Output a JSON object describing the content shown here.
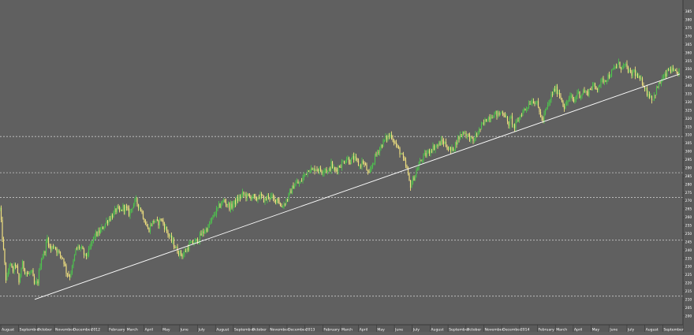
{
  "chart_data": {
    "type": "candlestick",
    "title": "",
    "xlabel": "",
    "ylabel": "",
    "ylim": [
      197,
      391
    ],
    "grid": false,
    "legend": "none",
    "colors": {
      "background": "#606060",
      "up_candle": "#4ec24e",
      "down_candle": "#f0e080",
      "trendline": "#ffffff",
      "level_line": "#c8c8c8",
      "axis_text": "#ffffff",
      "axis_bg": "#5a5a5a"
    },
    "y_ticks": [
      200,
      205,
      210,
      215,
      220,
      225,
      230,
      235,
      240,
      245,
      250,
      255,
      260,
      265,
      270,
      275,
      280,
      285,
      290,
      295,
      300,
      305,
      310,
      315,
      320,
      325,
      330,
      335,
      340,
      345,
      350,
      355,
      360,
      365,
      370,
      375,
      380,
      385
    ],
    "x_labels": [
      "August",
      "September",
      "October",
      "November",
      "December",
      "2012",
      "February",
      "March",
      "April",
      "May",
      "June",
      "July",
      "August",
      "September",
      "October",
      "November",
      "December",
      "2013",
      "February",
      "March",
      "April",
      "May",
      "June",
      "July",
      "August",
      "September",
      "October",
      "November",
      "December",
      "2014",
      "February",
      "March",
      "April",
      "May",
      "June",
      "July",
      "August",
      "September"
    ],
    "horizontal_levels": [
      212,
      246,
      272,
      287,
      309
    ],
    "trendline": {
      "start": {
        "x": 44,
        "y": 210
      },
      "end": {
        "x": 862,
        "y": 347
      }
    },
    "price_path": [
      [
        0,
        265
      ],
      [
        4,
        242
      ],
      [
        8,
        220
      ],
      [
        12,
        232
      ],
      [
        16,
        227
      ],
      [
        20,
        232
      ],
      [
        24,
        220
      ],
      [
        28,
        232
      ],
      [
        32,
        227
      ],
      [
        36,
        225
      ],
      [
        40,
        227
      ],
      [
        44,
        218
      ],
      [
        48,
        221
      ],
      [
        52,
        235
      ],
      [
        56,
        238
      ],
      [
        60,
        247
      ],
      [
        64,
        240
      ],
      [
        68,
        243
      ],
      [
        72,
        240
      ],
      [
        76,
        237
      ],
      [
        80,
        235
      ],
      [
        84,
        227
      ],
      [
        88,
        224
      ],
      [
        92,
        230
      ],
      [
        96,
        240
      ],
      [
        100,
        242
      ],
      [
        104,
        240
      ],
      [
        108,
        236
      ],
      [
        112,
        238
      ],
      [
        116,
        244
      ],
      [
        120,
        249
      ],
      [
        124,
        250
      ],
      [
        128,
        252
      ],
      [
        132,
        255
      ],
      [
        136,
        258
      ],
      [
        140,
        260
      ],
      [
        144,
        262
      ],
      [
        148,
        265
      ],
      [
        152,
        263
      ],
      [
        156,
        266
      ],
      [
        160,
        265
      ],
      [
        164,
        262
      ],
      [
        168,
        267
      ],
      [
        172,
        270
      ],
      [
        176,
        267
      ],
      [
        180,
        263
      ],
      [
        184,
        257
      ],
      [
        188,
        252
      ],
      [
        192,
        256
      ],
      [
        196,
        258
      ],
      [
        200,
        256
      ],
      [
        204,
        259
      ],
      [
        208,
        255
      ],
      [
        212,
        251
      ],
      [
        216,
        247
      ],
      [
        220,
        244
      ],
      [
        224,
        240
      ],
      [
        228,
        238
      ],
      [
        232,
        237
      ],
      [
        236,
        240
      ],
      [
        240,
        243
      ],
      [
        244,
        244
      ],
      [
        248,
        245
      ],
      [
        252,
        247
      ],
      [
        256,
        250
      ],
      [
        260,
        252
      ],
      [
        264,
        254
      ],
      [
        268,
        258
      ],
      [
        272,
        262
      ],
      [
        276,
        265
      ],
      [
        280,
        268
      ],
      [
        284,
        270
      ],
      [
        288,
        268
      ],
      [
        292,
        266
      ],
      [
        296,
        268
      ],
      [
        300,
        270
      ],
      [
        304,
        272
      ],
      [
        308,
        274
      ],
      [
        312,
        273
      ],
      [
        316,
        272
      ],
      [
        320,
        273
      ],
      [
        324,
        270
      ],
      [
        328,
        273
      ],
      [
        332,
        272
      ],
      [
        336,
        270
      ],
      [
        340,
        273
      ],
      [
        344,
        272
      ],
      [
        348,
        270
      ],
      [
        352,
        272
      ],
      [
        356,
        266
      ],
      [
        360,
        268
      ],
      [
        364,
        271
      ],
      [
        368,
        275
      ],
      [
        372,
        279
      ],
      [
        376,
        281
      ],
      [
        380,
        280
      ],
      [
        384,
        284
      ],
      [
        388,
        287
      ],
      [
        392,
        290
      ],
      [
        396,
        288
      ],
      [
        400,
        290
      ],
      [
        404,
        289
      ],
      [
        408,
        288
      ],
      [
        412,
        290
      ],
      [
        416,
        287
      ],
      [
        420,
        292
      ],
      [
        424,
        288
      ],
      [
        428,
        290
      ],
      [
        432,
        292
      ],
      [
        436,
        294
      ],
      [
        440,
        296
      ],
      [
        444,
        294
      ],
      [
        448,
        296
      ],
      [
        452,
        294
      ],
      [
        456,
        291
      ],
      [
        460,
        294
      ],
      [
        464,
        290
      ],
      [
        468,
        285
      ],
      [
        472,
        292
      ],
      [
        476,
        297
      ],
      [
        480,
        301
      ],
      [
        484,
        304
      ],
      [
        488,
        307
      ],
      [
        492,
        309
      ],
      [
        496,
        310
      ],
      [
        500,
        306
      ],
      [
        504,
        302
      ],
      [
        508,
        299
      ],
      [
        512,
        294
      ],
      [
        516,
        289
      ],
      [
        520,
        279
      ],
      [
        524,
        283
      ],
      [
        528,
        288
      ],
      [
        532,
        293
      ],
      [
        536,
        296
      ],
      [
        540,
        298
      ],
      [
        544,
        300
      ],
      [
        548,
        302
      ],
      [
        552,
        303
      ],
      [
        556,
        304
      ],
      [
        560,
        306
      ],
      [
        564,
        305
      ],
      [
        568,
        302
      ],
      [
        572,
        300
      ],
      [
        576,
        303
      ],
      [
        580,
        307
      ],
      [
        584,
        310
      ],
      [
        588,
        312
      ],
      [
        592,
        310
      ],
      [
        596,
        308
      ],
      [
        600,
        306
      ],
      [
        604,
        310
      ],
      [
        608,
        313
      ],
      [
        612,
        316
      ],
      [
        616,
        319
      ],
      [
        620,
        321
      ],
      [
        624,
        322
      ],
      [
        628,
        323
      ],
      [
        632,
        322
      ],
      [
        636,
        324
      ],
      [
        640,
        323
      ],
      [
        644,
        316
      ],
      [
        648,
        320
      ],
      [
        652,
        314
      ],
      [
        656,
        318
      ],
      [
        660,
        322
      ],
      [
        664,
        325
      ],
      [
        668,
        327
      ],
      [
        672,
        330
      ],
      [
        676,
        331
      ],
      [
        680,
        330
      ],
      [
        684,
        324
      ],
      [
        688,
        318
      ],
      [
        692,
        325
      ],
      [
        696,
        329
      ],
      [
        700,
        335
      ],
      [
        704,
        338
      ],
      [
        708,
        336
      ],
      [
        712,
        332
      ],
      [
        716,
        326
      ],
      [
        720,
        331
      ],
      [
        724,
        333
      ],
      [
        728,
        330
      ],
      [
        732,
        336
      ],
      [
        736,
        334
      ],
      [
        740,
        337
      ],
      [
        744,
        335
      ],
      [
        748,
        338
      ],
      [
        752,
        340
      ],
      [
        756,
        338
      ],
      [
        760,
        341
      ],
      [
        764,
        343
      ],
      [
        768,
        344
      ],
      [
        772,
        346
      ],
      [
        776,
        348
      ],
      [
        780,
        351
      ],
      [
        784,
        353
      ],
      [
        788,
        351
      ],
      [
        792,
        352
      ],
      [
        796,
        350
      ],
      [
        800,
        346
      ],
      [
        804,
        349
      ],
      [
        808,
        345
      ],
      [
        812,
        343
      ],
      [
        816,
        341
      ],
      [
        820,
        336
      ],
      [
        824,
        334
      ],
      [
        828,
        332
      ],
      [
        832,
        337
      ],
      [
        836,
        341
      ],
      [
        840,
        344
      ],
      [
        844,
        346
      ],
      [
        848,
        350
      ],
      [
        852,
        349
      ],
      [
        856,
        347
      ],
      [
        860,
        348
      ],
      [
        862,
        351
      ]
    ]
  }
}
